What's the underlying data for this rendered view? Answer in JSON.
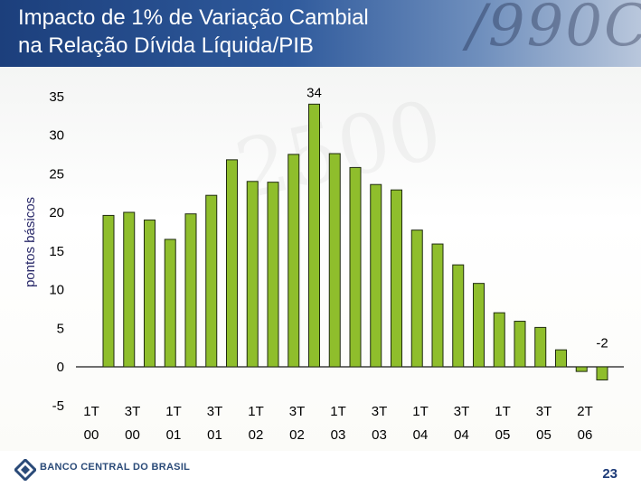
{
  "header": {
    "title_line1": "Impacto de 1% de Variação Cambial",
    "title_line2": "na Relação Dívida Líquida/PIB"
  },
  "footer": {
    "bank_name": "BANCO CENTRAL DO BRASIL",
    "page_number": "23"
  },
  "colors": {
    "bar_fill": "#8fbe2c",
    "bar_stroke": "#1f2a10",
    "header_blue": "#1c3f7c"
  },
  "chart_data": {
    "type": "bar",
    "title": "Impacto de 1% de Variação Cambial na Relação Dívida Líquida/PIB",
    "ylabel": "pontos básicos",
    "xlabel": "",
    "ylim": [
      -5,
      35
    ],
    "yticks": [
      35,
      30,
      25,
      20,
      15,
      10,
      5,
      0,
      -5
    ],
    "grid": false,
    "values": [
      19.6,
      20.0,
      19.0,
      16.5,
      19.8,
      22.2,
      26.8,
      24.0,
      23.9,
      27.5,
      34.0,
      27.6,
      25.8,
      23.6,
      22.9,
      17.7,
      15.9,
      13.2,
      10.8,
      7.0,
      5.9,
      5.1,
      2.2,
      -0.6,
      -1.7
    ],
    "category_labels": [
      {
        "index": 0,
        "line1": "1T",
        "line2": "00"
      },
      {
        "index": 2,
        "line1": "3T",
        "line2": "00"
      },
      {
        "index": 4,
        "line1": "1T",
        "line2": "01"
      },
      {
        "index": 6,
        "line1": "3T",
        "line2": "01"
      },
      {
        "index": 8,
        "line1": "1T",
        "line2": "02"
      },
      {
        "index": 10,
        "line1": "3T",
        "line2": "02"
      },
      {
        "index": 12,
        "line1": "1T",
        "line2": "03"
      },
      {
        "index": 14,
        "line1": "3T",
        "line2": "03"
      },
      {
        "index": 16,
        "line1": "1T",
        "line2": "04"
      },
      {
        "index": 18,
        "line1": "3T",
        "line2": "04"
      },
      {
        "index": 20,
        "line1": "1T",
        "line2": "05"
      },
      {
        "index": 22,
        "line1": "3T",
        "line2": "05"
      },
      {
        "index": 24,
        "line1": "2T",
        "line2": "06"
      }
    ],
    "data_labels": [
      {
        "index": 10,
        "text": "34"
      },
      {
        "index": 24,
        "text": "-2"
      }
    ]
  }
}
